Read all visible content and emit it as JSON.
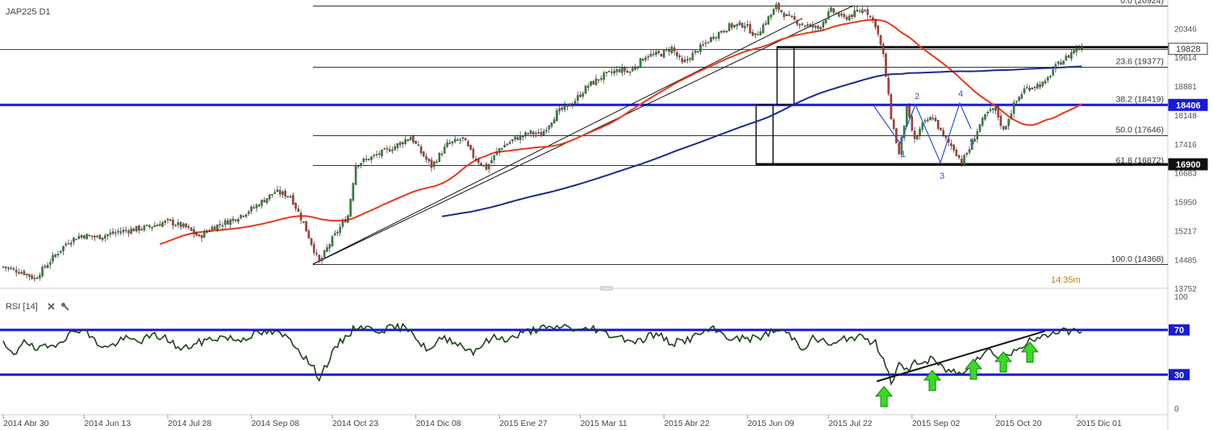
{
  "header": {
    "symbol": "JAP225 D1"
  },
  "colors": {
    "bull": "#2e8b3a",
    "bear": "#c0392b",
    "ma_fast": "#e8391a",
    "ma_slow": "#1a2a8c",
    "hline_blue": "#1a1adc",
    "rsi_line": "#1f3f1a",
    "arrow": "#33dd22",
    "wave": "#3050d0"
  },
  "chart_data": [
    {
      "type": "candlestick",
      "title": "JAP225 D1",
      "ylim": [
        13500,
        21200
      ],
      "y_ticks": [
        "20346",
        "19614",
        "18881",
        "18148",
        "17416",
        "16683",
        "15950",
        "15217",
        "14485",
        "13752"
      ],
      "x_ticks": [
        "2014 Abr 30",
        "2014 Jun 13",
        "2014 Jul 28",
        "2014 Sep 08",
        "2014 Oct 23",
        "2014 Dic 08",
        "2015 Ene 27",
        "2015 Mar 11",
        "2015 Abr 22",
        "2015 Jun 09",
        "2015 Jul 22",
        "2015 Sep 02",
        "2015 Oct 20",
        "2015 Dic 01"
      ],
      "x_tick_index": [
        0,
        31,
        63,
        95,
        126,
        158,
        190,
        221,
        253,
        285,
        316,
        348,
        380,
        411
      ],
      "n_bars": 470,
      "close_anchors": [
        [
          0,
          14300
        ],
        [
          8,
          14150
        ],
        [
          12,
          14000
        ],
        [
          20,
          14600
        ],
        [
          25,
          14950
        ],
        [
          30,
          15100
        ],
        [
          36,
          15050
        ],
        [
          45,
          15200
        ],
        [
          55,
          15300
        ],
        [
          63,
          15450
        ],
        [
          70,
          15300
        ],
        [
          75,
          15050
        ],
        [
          80,
          15300
        ],
        [
          88,
          15500
        ],
        [
          96,
          15800
        ],
        [
          104,
          16200
        ],
        [
          110,
          16100
        ],
        [
          115,
          15400
        ],
        [
          121,
          14400
        ],
        [
          126,
          15000
        ],
        [
          132,
          15600
        ],
        [
          135,
          16900
        ],
        [
          142,
          17100
        ],
        [
          150,
          17350
        ],
        [
          156,
          17600
        ],
        [
          160,
          17200
        ],
        [
          164,
          16850
        ],
        [
          170,
          17400
        ],
        [
          176,
          17550
        ],
        [
          180,
          17100
        ],
        [
          185,
          16800
        ],
        [
          190,
          17300
        ],
        [
          196,
          17550
        ],
        [
          202,
          17700
        ],
        [
          206,
          17650
        ],
        [
          212,
          18200
        ],
        [
          218,
          18450
        ],
        [
          224,
          18900
        ],
        [
          230,
          19150
        ],
        [
          236,
          19300
        ],
        [
          240,
          19250
        ],
        [
          246,
          19650
        ],
        [
          252,
          19700
        ],
        [
          256,
          19850
        ],
        [
          260,
          19450
        ],
        [
          266,
          19800
        ],
        [
          272,
          20150
        ],
        [
          278,
          20400
        ],
        [
          284,
          20450
        ],
        [
          288,
          20150
        ],
        [
          294,
          20700
        ],
        [
          296,
          20900
        ],
        [
          300,
          20650
        ],
        [
          306,
          20450
        ],
        [
          312,
          20350
        ],
        [
          317,
          20800
        ],
        [
          322,
          20600
        ],
        [
          330,
          20850
        ],
        [
          334,
          20450
        ],
        [
          337,
          19650
        ],
        [
          340,
          18100
        ],
        [
          343,
          17150
        ],
        [
          346,
          18300
        ],
        [
          349,
          17500
        ],
        [
          352,
          17900
        ],
        [
          356,
          18100
        ],
        [
          360,
          17600
        ],
        [
          364,
          17300
        ],
        [
          367,
          16950
        ],
        [
          370,
          17300
        ],
        [
          374,
          17900
        ],
        [
          377,
          18200
        ],
        [
          380,
          18300
        ],
        [
          383,
          17750
        ],
        [
          387,
          18400
        ],
        [
          391,
          18800
        ],
        [
          395,
          18900
        ],
        [
          399,
          18950
        ],
        [
          402,
          19300
        ],
        [
          405,
          19500
        ],
        [
          408,
          19650
        ],
        [
          410,
          19800
        ],
        [
          413,
          19900
        ]
      ],
      "highlight_price": 19828,
      "annotations": {
        "fib_levels": [
          {
            "label": "0.0 (20924)",
            "price": 20924
          },
          {
            "label": "23.6 (19377)",
            "price": 19377
          },
          {
            "label": "38.2 (18419)",
            "price": 18419
          },
          {
            "label": "50.0 (17646)",
            "price": 17646
          },
          {
            "label": "61.8 (16872)",
            "price": 16872
          },
          {
            "label": "100.0 (14368)",
            "price": 14368
          }
        ],
        "price_boxes": [
          "19828",
          "18406",
          "16900"
        ],
        "wave_labels": [
          "1",
          "2",
          "3",
          "4",
          "5"
        ],
        "time_label": "14:35m"
      }
    },
    {
      "type": "line",
      "title": "RSI [14]",
      "ylim": [
        0,
        100
      ],
      "y_ticks": [
        "100",
        "0"
      ],
      "levels": [
        "70",
        "30"
      ],
      "anchors": [
        [
          0,
          57
        ],
        [
          4,
          46
        ],
        [
          8,
          63
        ],
        [
          12,
          52
        ],
        [
          18,
          55
        ],
        [
          24,
          64
        ],
        [
          30,
          72
        ],
        [
          36,
          58
        ],
        [
          40,
          54
        ],
        [
          46,
          62
        ],
        [
          52,
          60
        ],
        [
          58,
          65
        ],
        [
          63,
          62
        ],
        [
          68,
          52
        ],
        [
          72,
          56
        ],
        [
          78,
          61
        ],
        [
          84,
          64
        ],
        [
          90,
          61
        ],
        [
          96,
          66
        ],
        [
          102,
          68
        ],
        [
          106,
          66
        ],
        [
          110,
          62
        ],
        [
          114,
          50
        ],
        [
          118,
          38
        ],
        [
          121,
          28
        ],
        [
          124,
          40
        ],
        [
          128,
          56
        ],
        [
          132,
          66
        ],
        [
          136,
          74
        ],
        [
          140,
          71
        ],
        [
          144,
          70
        ],
        [
          150,
          72
        ],
        [
          156,
          72
        ],
        [
          160,
          56
        ],
        [
          164,
          52
        ],
        [
          168,
          63
        ],
        [
          172,
          61
        ],
        [
          176,
          55
        ],
        [
          180,
          51
        ],
        [
          184,
          58
        ],
        [
          188,
          63
        ],
        [
          194,
          62
        ],
        [
          200,
          68
        ],
        [
          206,
          72
        ],
        [
          210,
          70
        ],
        [
          214,
          74
        ],
        [
          218,
          71
        ],
        [
          222,
          69
        ],
        [
          226,
          72
        ],
        [
          230,
          67
        ],
        [
          236,
          64
        ],
        [
          240,
          61
        ],
        [
          244,
          60
        ],
        [
          248,
          66
        ],
        [
          252,
          64
        ],
        [
          256,
          58
        ],
        [
          260,
          60
        ],
        [
          264,
          63
        ],
        [
          268,
          68
        ],
        [
          272,
          70
        ],
        [
          276,
          66
        ],
        [
          280,
          61
        ],
        [
          284,
          63
        ],
        [
          288,
          62
        ],
        [
          294,
          68
        ],
        [
          298,
          70
        ],
        [
          302,
          64
        ],
        [
          306,
          54
        ],
        [
          310,
          62
        ],
        [
          314,
          60
        ],
        [
          318,
          56
        ],
        [
          322,
          62
        ],
        [
          326,
          64
        ],
        [
          330,
          62
        ],
        [
          334,
          58
        ],
        [
          337,
          46
        ],
        [
          340,
          24
        ],
        [
          343,
          38
        ],
        [
          346,
          33
        ],
        [
          349,
          42
        ],
        [
          352,
          40
        ],
        [
          356,
          44
        ],
        [
          360,
          35
        ],
        [
          364,
          33
        ],
        [
          367,
          30
        ],
        [
          370,
          40
        ],
        [
          374,
          47
        ],
        [
          377,
          52
        ],
        [
          380,
          48
        ],
        [
          383,
          46
        ],
        [
          387,
          50
        ],
        [
          391,
          58
        ],
        [
          395,
          61
        ],
        [
          399,
          64
        ],
        [
          402,
          68
        ],
        [
          405,
          70
        ],
        [
          408,
          69
        ],
        [
          410,
          71
        ],
        [
          413,
          65
        ]
      ]
    }
  ]
}
